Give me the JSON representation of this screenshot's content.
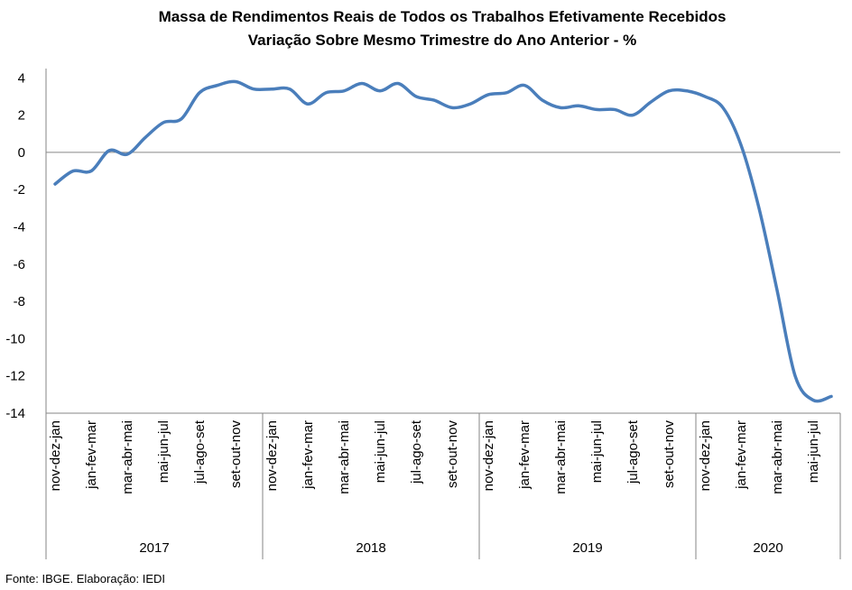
{
  "chart_data": {
    "type": "line",
    "title": "Massa de Rendimentos Reais de Todos os Trabalhos Efetivamente Recebidos",
    "subtitle": "Variação Sobre Mesmo Trimestre do Ano Anterior - %",
    "source": "Fonte: IBGE. Elaboração: IEDI",
    "categories": [
      "nov-dez-jan",
      null,
      "jan-fev-mar",
      null,
      "mar-abr-mai",
      null,
      "mai-jun-jul",
      null,
      "jul-ago-set",
      null,
      "set-out-nov",
      null,
      "nov-dez-jan",
      null,
      "jan-fev-mar",
      null,
      "mar-abr-mai",
      null,
      "mai-jun-jul",
      null,
      "jul-ago-set",
      null,
      "set-out-nov",
      null,
      "nov-dez-jan",
      null,
      "jan-fev-mar",
      null,
      "mar-abr-mai",
      null,
      "mai-jun-jul",
      null,
      "jul-ago-set",
      null,
      "set-out-nov",
      null,
      "nov-dez-jan",
      null,
      "jan-fev-mar",
      null,
      "mar-abr-mai",
      null,
      "mai-jun-jul",
      null
    ],
    "groups": [
      {
        "label": "2017",
        "size": 12
      },
      {
        "label": "2018",
        "size": 12
      },
      {
        "label": "2019",
        "size": 12
      },
      {
        "label": "2020",
        "size": 8
      }
    ],
    "series": [
      {
        "name": "Massa de Rendimentos",
        "color": "#4a7ebb",
        "values": [
          -1.7,
          -1.0,
          -1.0,
          0.1,
          -0.1,
          0.8,
          1.6,
          1.8,
          3.2,
          3.6,
          3.8,
          3.4,
          3.4,
          3.4,
          2.6,
          3.2,
          3.3,
          3.7,
          3.3,
          3.7,
          3.0,
          2.8,
          2.4,
          2.6,
          3.1,
          3.2,
          3.6,
          2.8,
          2.4,
          2.5,
          2.3,
          2.3,
          2.0,
          2.7,
          3.3,
          3.3,
          3.0,
          2.4,
          0.4,
          -3.0,
          -7.4,
          -12.0,
          -13.3,
          -13.1
        ]
      }
    ],
    "ylim": [
      -14,
      4.5
    ],
    "yticks": [
      4,
      2,
      0,
      -2,
      -4,
      -6,
      -8,
      -10,
      -12,
      -14
    ],
    "grid": false
  }
}
